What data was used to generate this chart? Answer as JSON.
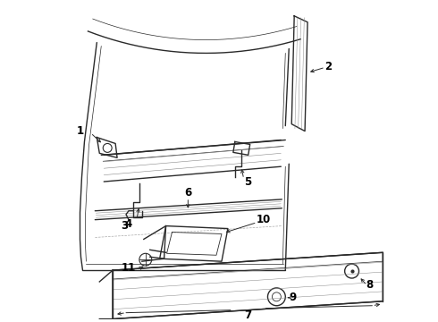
{
  "bg_color": "#ffffff",
  "line_color": "#2a2a2a",
  "label_color": "#000000",
  "figsize": [
    4.9,
    3.6
  ],
  "dpi": 100,
  "arrow_lw": 0.7,
  "main_lw": 1.0,
  "thin_lw": 0.5
}
